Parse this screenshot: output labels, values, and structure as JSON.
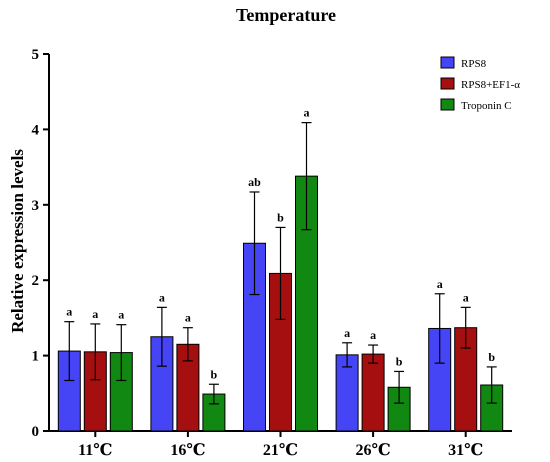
{
  "chart_data": {
    "type": "bar",
    "title": "Temperature",
    "xlabel": "",
    "ylabel": "Relative expression levels",
    "ylim": [
      0,
      5
    ],
    "yticks": [
      0,
      1,
      2,
      3,
      4,
      5
    ],
    "categories": [
      "11℃",
      "16℃",
      "21℃",
      "26℃",
      "31℃"
    ],
    "legend_position": "top-right",
    "series": [
      {
        "name": "RPS8",
        "color": "#4545f5",
        "values": [
          1.06,
          1.25,
          2.49,
          1.01,
          1.36
        ],
        "errors": [
          0.39,
          0.39,
          0.68,
          0.16,
          0.46
        ],
        "significance": [
          "a",
          "a",
          "ab",
          "a",
          "a"
        ]
      },
      {
        "name": "RPS8+EF1-α",
        "color": "#a50f0f",
        "values": [
          1.05,
          1.15,
          2.09,
          1.02,
          1.37
        ],
        "errors": [
          0.37,
          0.22,
          0.61,
          0.12,
          0.27
        ],
        "significance": [
          "a",
          "a",
          "b",
          "a",
          "a"
        ]
      },
      {
        "name": "Troponin C",
        "color": "#118811",
        "values": [
          1.04,
          0.49,
          3.38,
          0.58,
          0.61
        ],
        "errors": [
          0.37,
          0.13,
          0.71,
          0.21,
          0.24
        ],
        "significance": [
          "a",
          "b",
          "a",
          "b",
          "b"
        ]
      }
    ]
  }
}
